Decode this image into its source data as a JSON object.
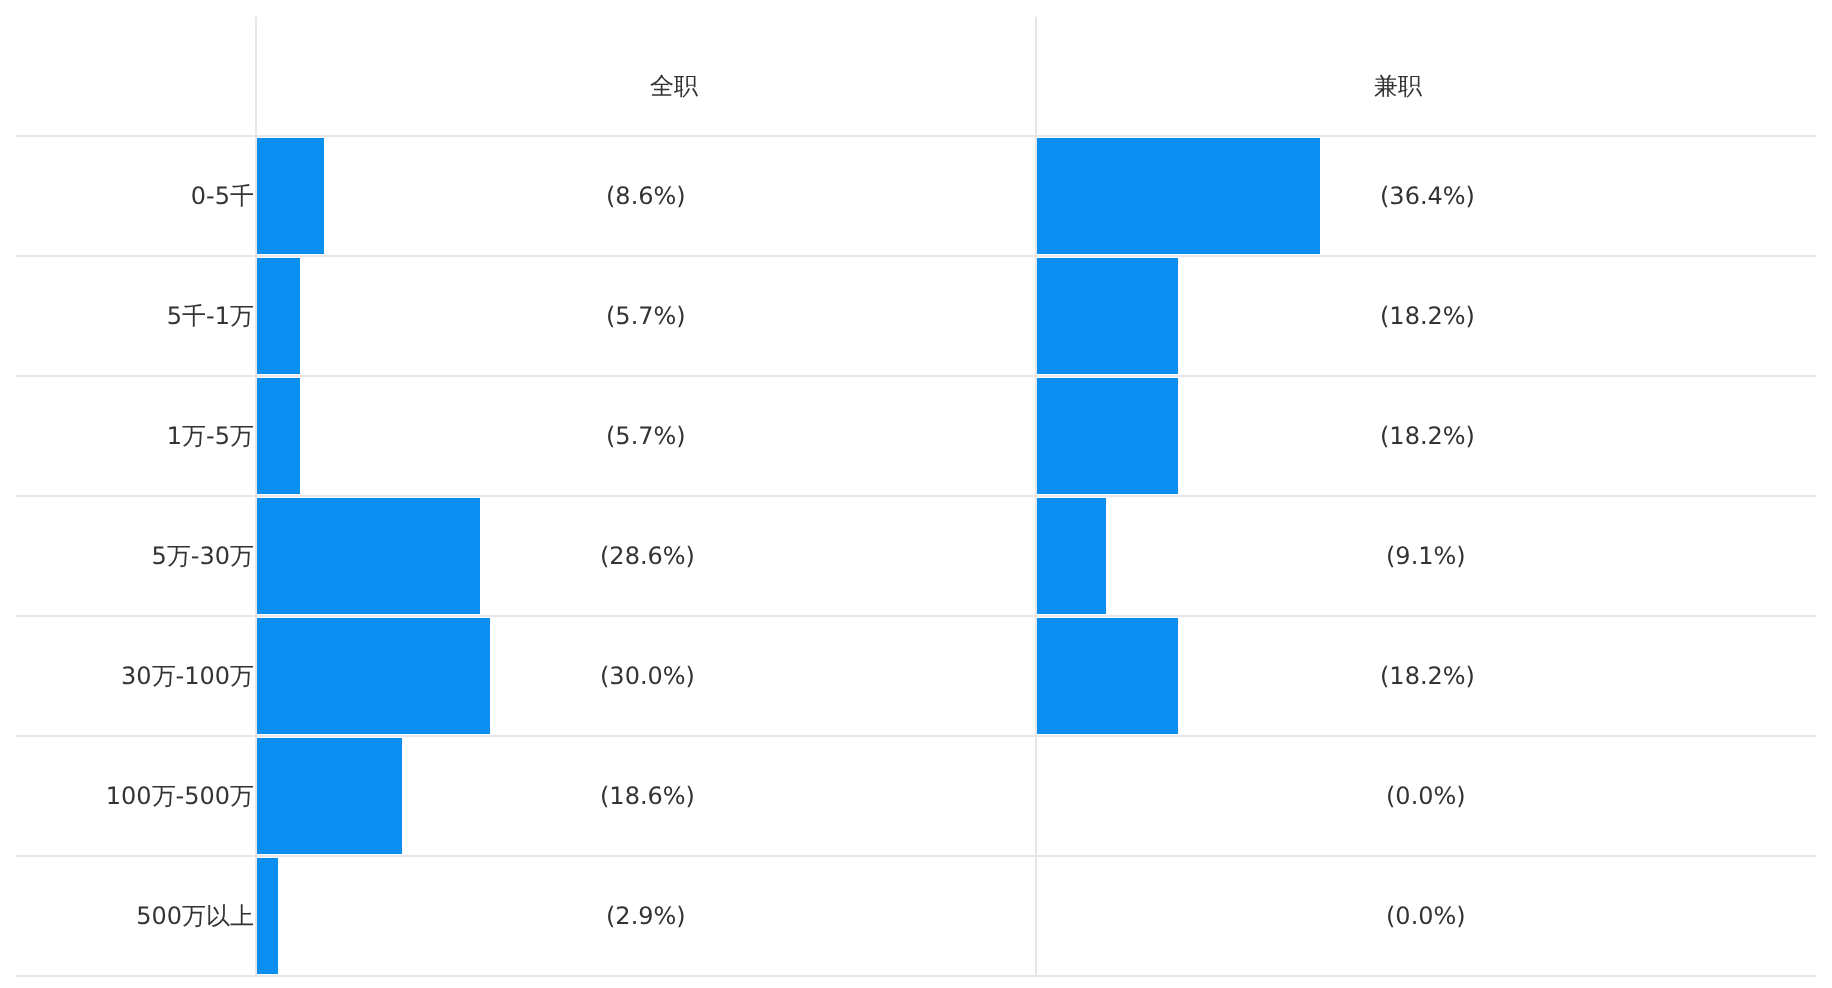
{
  "chart_data": [
    {
      "type": "bar",
      "orientation": "horizontal",
      "title": "全职",
      "categories": [
        "0-5千",
        "5千-1万",
        "1万-5万",
        "5万-30万",
        "30万-100万",
        "100万-500万",
        "500万以上"
      ],
      "values": [
        8.6,
        5.7,
        5.7,
        28.6,
        30.0,
        18.6,
        2.9
      ],
      "value_labels": [
        "(8.6%)",
        "(5.7%)",
        "(5.7%)",
        "(28.6%)",
        "(30.0%)",
        "(18.6%)",
        "(2.9%)"
      ],
      "color": "#0a8ef0",
      "xlim": [
        0,
        100
      ],
      "tick_labels": "y"
    },
    {
      "type": "bar",
      "orientation": "horizontal",
      "title": "兼职",
      "values": [
        36.4,
        18.2,
        18.2,
        9.1,
        18.2,
        0.0,
        0.0
      ],
      "value_labels": [
        "(36.4%)",
        "(18.2%)",
        "(18.2%)",
        "(9.1%)",
        "(18.2%)",
        "(0.0%)",
        "(0.0%)"
      ],
      "color": "#0a8ef0",
      "xlim": [
        0,
        100
      ],
      "tick_labels": false
    }
  ]
}
